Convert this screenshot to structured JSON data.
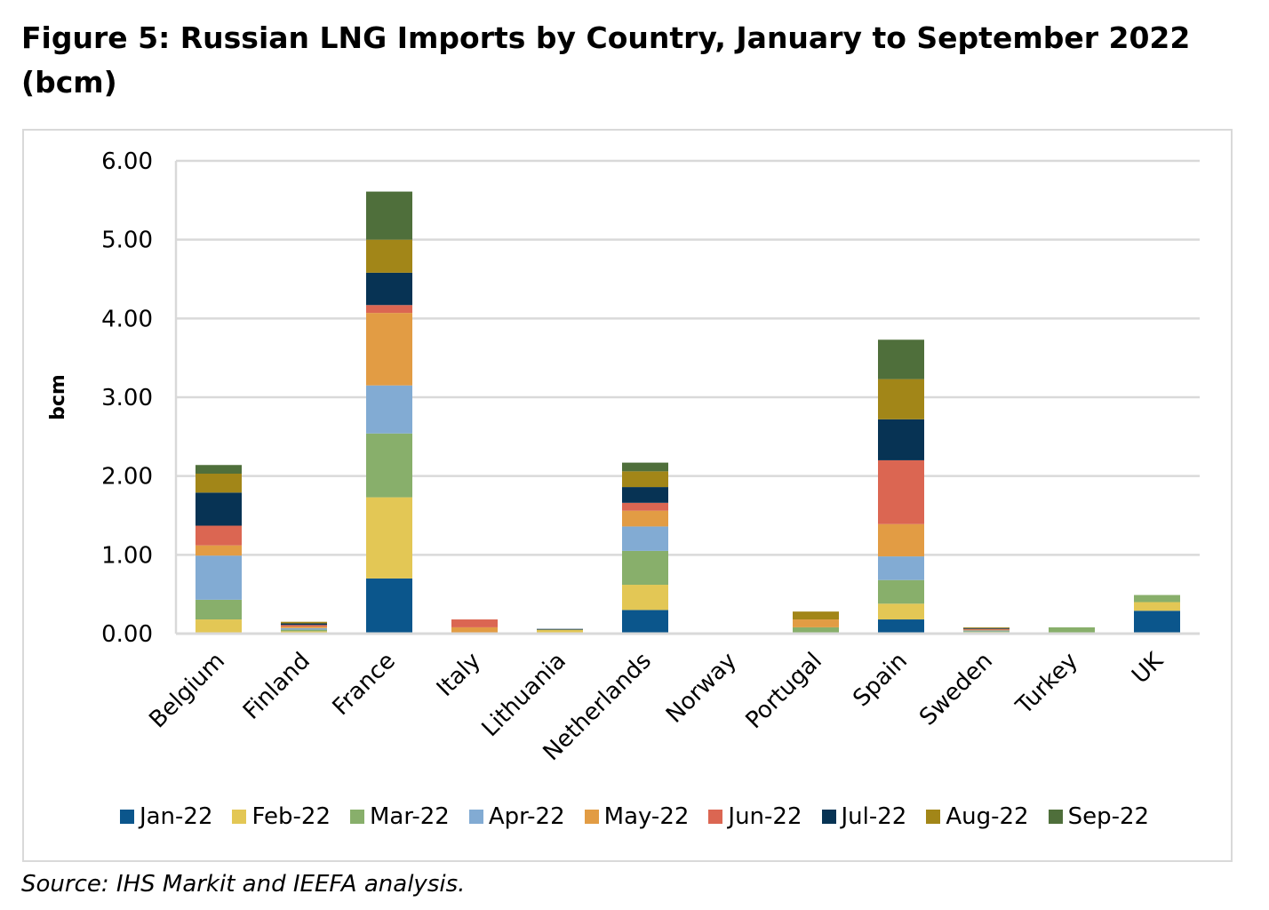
{
  "title": "Figure 5: Russian LNG Imports by Country, January to September 2022 (bcm)",
  "source": "Source: IHS Markit and IEEFA analysis.",
  "chart_data": {
    "type": "bar",
    "stacked": true,
    "ylabel": "bcm",
    "ylim": [
      0,
      6
    ],
    "yticks": [
      "0.00",
      "1.00",
      "2.00",
      "3.00",
      "4.00",
      "5.00",
      "6.00"
    ],
    "grid": true,
    "legend_position": "bottom",
    "categories": [
      "Belgium",
      "Finland",
      "France",
      "Italy",
      "Lithuania",
      "Netherlands",
      "Norway",
      "Portugal",
      "Spain",
      "Sweden",
      "Turkey",
      "UK"
    ],
    "series": [
      {
        "name": "Jan-22",
        "color": "#0b568c",
        "values": [
          0,
          0,
          0.7,
          0,
          0,
          0.3,
          0,
          0,
          0.18,
          0.01,
          0,
          0.29
        ]
      },
      {
        "name": "Feb-22",
        "color": "#e3c755",
        "values": [
          0.18,
          0.03,
          1.03,
          0,
          0.05,
          0.32,
          0,
          0,
          0.2,
          0.01,
          0,
          0.11
        ]
      },
      {
        "name": "Mar-22",
        "color": "#88af6b",
        "values": [
          0.25,
          0.02,
          0.81,
          0,
          0,
          0.43,
          0,
          0.08,
          0.3,
          0.01,
          0.08,
          0.09
        ]
      },
      {
        "name": "Apr-22",
        "color": "#82abd3",
        "values": [
          0.56,
          0.02,
          0.61,
          0,
          0,
          0.31,
          0,
          0,
          0.3,
          0.01,
          0,
          0
        ]
      },
      {
        "name": "May-22",
        "color": "#e29c44",
        "values": [
          0.13,
          0.02,
          0.92,
          0.08,
          0,
          0.2,
          0,
          0.1,
          0.41,
          0.01,
          0,
          0
        ]
      },
      {
        "name": "Jun-22",
        "color": "#db6652",
        "values": [
          0.25,
          0.02,
          0.1,
          0.1,
          0,
          0.1,
          0,
          0,
          0.81,
          0.01,
          0,
          0
        ]
      },
      {
        "name": "Jul-22",
        "color": "#073354",
        "values": [
          0.42,
          0.02,
          0.41,
          0,
          0.01,
          0.2,
          0.01,
          0,
          0.52,
          0.01,
          0,
          0
        ]
      },
      {
        "name": "Aug-22",
        "color": "#a28618",
        "values": [
          0.24,
          0.02,
          0.42,
          0,
          0,
          0.2,
          0,
          0.1,
          0.51,
          0.01,
          0,
          0
        ]
      },
      {
        "name": "Sep-22",
        "color": "#4f6f3b",
        "values": [
          0.11,
          0,
          0.61,
          0,
          0,
          0.11,
          0,
          0,
          0.5,
          0,
          0,
          0
        ]
      }
    ]
  }
}
